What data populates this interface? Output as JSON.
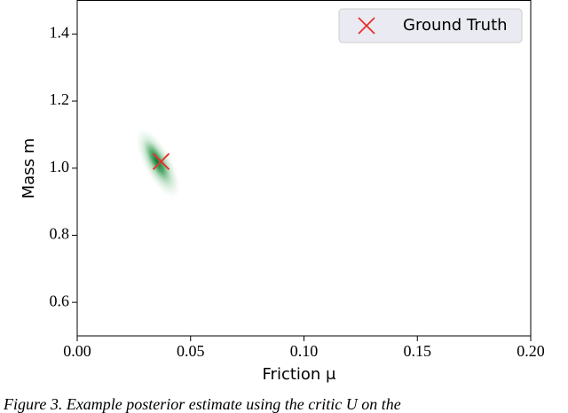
{
  "chart_data": {
    "type": "scatter",
    "x_label": "Friction μ",
    "y_label": "Mass m",
    "series": [
      {
        "name": "Ground Truth",
        "color": "#e8302a",
        "marker": "x",
        "x": [
          0.037
        ],
        "values": [
          1.02
        ]
      }
    ],
    "xlim": [
      0,
      0.2
    ],
    "xticks": [
      {
        "value": 0,
        "label": "0.00"
      },
      0.05,
      {
        "value": 0.1,
        "label": "0.10"
      },
      0.15,
      {
        "value": 0.2,
        "label": "0.20"
      }
    ],
    "ylim": [
      0.5,
      1.5
    ],
    "yticks": [
      0.6,
      0.8,
      {
        "value": 1,
        "label": "1.0"
      },
      1.2,
      1.4
    ],
    "grid": false,
    "legend": "upper right"
  },
  "caption": "Figure 3. Example posterior estimate using the critic U on the"
}
